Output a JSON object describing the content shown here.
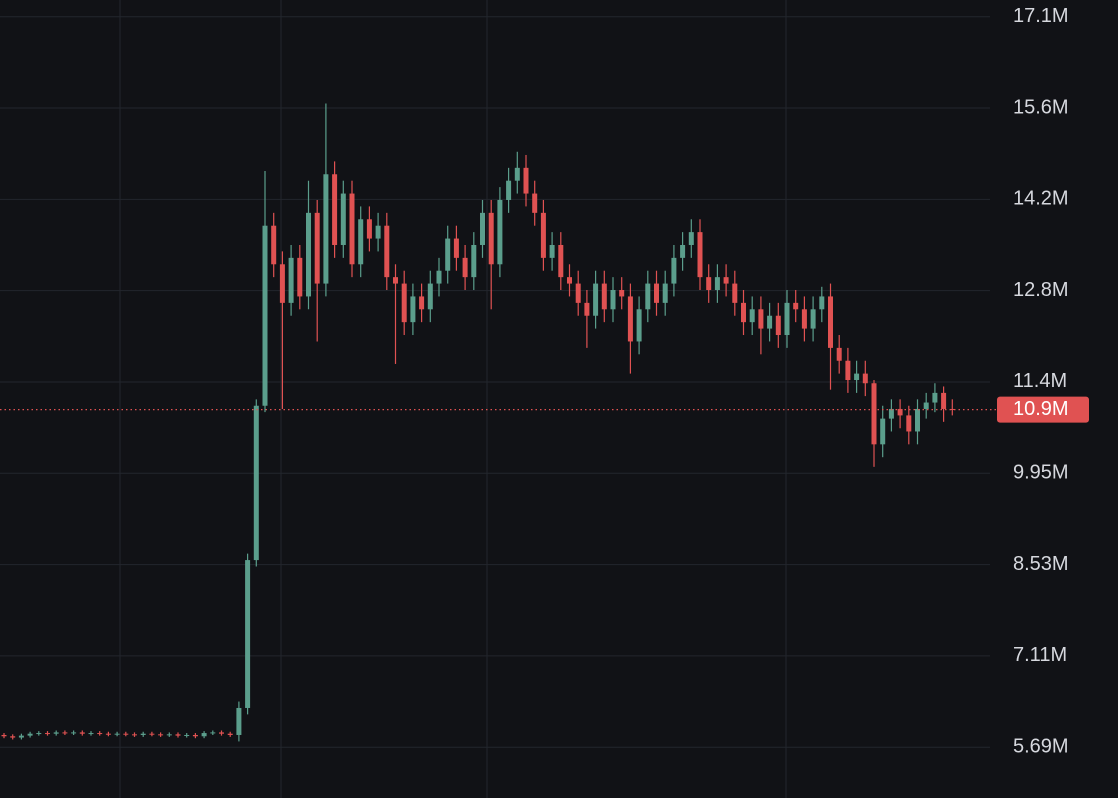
{
  "chart_data": {
    "type": "candlestick",
    "up_color": "#5b9e8c",
    "down_color": "#e05252",
    "grid": true,
    "ylim": [
      4.9,
      17.31
    ],
    "yticks": [
      {
        "value": 17.05,
        "label": "17.1M"
      },
      {
        "value": 15.63,
        "label": "15.6M"
      },
      {
        "value": 14.21,
        "label": "14.2M"
      },
      {
        "value": 12.79,
        "label": "12.8M"
      },
      {
        "value": 11.37,
        "label": "11.4M"
      },
      {
        "value": 9.95,
        "label": "9.95M"
      },
      {
        "value": 8.53,
        "label": "8.53M"
      },
      {
        "value": 7.11,
        "label": "7.11M"
      },
      {
        "value": 5.69,
        "label": "5.69M"
      }
    ],
    "last_price": {
      "value": 10.94,
      "label": "10.9M"
    },
    "open": [
      5.88,
      5.86,
      5.84,
      5.87,
      5.9,
      5.91,
      5.9,
      5.92,
      5.91,
      5.92,
      5.9,
      5.91,
      5.9,
      5.89,
      5.9,
      5.89,
      5.88,
      5.9,
      5.89,
      5.88,
      5.89,
      5.87,
      5.88,
      5.86,
      5.91,
      5.92,
      5.9,
      5.88,
      6.3,
      8.6,
      11.0,
      13.8,
      13.2,
      12.6,
      13.3,
      12.7,
      14.0,
      12.9,
      14.6,
      13.5,
      14.3,
      13.2,
      13.9,
      13.6,
      13.8,
      13.0,
      12.9,
      12.3,
      12.7,
      12.5,
      12.9,
      13.1,
      13.6,
      13.3,
      13.0,
      13.5,
      14.0,
      13.2,
      14.2,
      14.5,
      14.7,
      14.3,
      14.0,
      13.3,
      13.5,
      13.0,
      12.9,
      12.6,
      12.4,
      12.9,
      12.5,
      12.8,
      12.7,
      12.0,
      12.5,
      12.9,
      12.6,
      12.9,
      13.3,
      13.5,
      13.7,
      13.0,
      12.8,
      13.0,
      12.9,
      12.6,
      12.3,
      12.5,
      12.2,
      12.4,
      12.1,
      12.6,
      12.5,
      12.2,
      12.5,
      12.7,
      11.9,
      11.7,
      11.4,
      11.5,
      11.35,
      10.4,
      10.8,
      10.95,
      10.85,
      10.6,
      10.95,
      11.05,
      11.2,
      10.95
    ],
    "high": [
      5.91,
      5.89,
      5.9,
      5.93,
      5.94,
      5.94,
      5.95,
      5.95,
      5.95,
      5.95,
      5.94,
      5.94,
      5.93,
      5.93,
      5.93,
      5.92,
      5.93,
      5.93,
      5.92,
      5.92,
      5.92,
      5.91,
      5.91,
      5.94,
      5.95,
      5.95,
      5.93,
      6.4,
      8.7,
      11.1,
      14.65,
      14.0,
      13.4,
      13.5,
      13.5,
      14.5,
      14.2,
      15.7,
      14.8,
      14.5,
      14.5,
      14.1,
      14.1,
      14.0,
      14.0,
      13.2,
      13.1,
      12.9,
      12.9,
      13.1,
      13.3,
      13.8,
      13.8,
      13.5,
      13.7,
      14.2,
      14.2,
      14.4,
      14.7,
      14.95,
      14.9,
      14.5,
      14.2,
      13.7,
      13.7,
      13.2,
      13.1,
      12.8,
      13.1,
      13.1,
      13.0,
      13.0,
      12.9,
      12.7,
      13.1,
      13.1,
      13.1,
      13.5,
      13.7,
      13.9,
      13.9,
      13.2,
      13.2,
      13.2,
      13.1,
      12.8,
      12.7,
      12.7,
      12.6,
      12.6,
      12.8,
      12.8,
      12.7,
      12.7,
      12.85,
      12.9,
      12.1,
      11.9,
      11.7,
      11.7,
      11.4,
      11.0,
      11.1,
      11.1,
      11.0,
      11.1,
      11.2,
      11.35,
      11.3,
      11.1
    ],
    "low": [
      5.83,
      5.81,
      5.81,
      5.84,
      5.87,
      5.87,
      5.87,
      5.88,
      5.88,
      5.87,
      5.87,
      5.87,
      5.86,
      5.86,
      5.86,
      5.85,
      5.85,
      5.86,
      5.85,
      5.85,
      5.84,
      5.84,
      5.83,
      5.83,
      5.88,
      5.87,
      5.85,
      5.78,
      6.2,
      8.5,
      10.9,
      13.0,
      10.95,
      12.4,
      12.5,
      12.5,
      12.0,
      12.7,
      13.3,
      13.3,
      13.0,
      13.0,
      13.4,
      13.4,
      12.8,
      11.65,
      12.1,
      12.1,
      12.3,
      12.3,
      12.7,
      12.9,
      13.1,
      12.8,
      12.8,
      13.3,
      12.5,
      13.0,
      14.0,
      14.3,
      14.1,
      13.8,
      13.1,
      13.1,
      12.8,
      12.7,
      12.4,
      11.9,
      12.2,
      12.3,
      12.3,
      12.5,
      11.5,
      11.8,
      12.3,
      12.4,
      12.4,
      12.7,
      13.1,
      13.3,
      12.8,
      12.6,
      12.6,
      12.7,
      12.4,
      12.1,
      12.1,
      11.8,
      12.0,
      11.9,
      11.9,
      12.3,
      12.0,
      12.0,
      12.3,
      11.25,
      11.5,
      11.2,
      11.2,
      11.15,
      10.05,
      10.2,
      10.6,
      10.65,
      10.4,
      10.4,
      10.8,
      10.9,
      10.75,
      10.85
    ],
    "close": [
      5.86,
      5.84,
      5.87,
      5.9,
      5.91,
      5.9,
      5.92,
      5.91,
      5.92,
      5.9,
      5.91,
      5.9,
      5.89,
      5.9,
      5.89,
      5.88,
      5.9,
      5.89,
      5.88,
      5.89,
      5.87,
      5.88,
      5.86,
      5.91,
      5.92,
      5.9,
      5.88,
      6.3,
      8.6,
      11.0,
      13.8,
      13.2,
      12.6,
      13.3,
      12.7,
      14.0,
      12.9,
      14.6,
      13.5,
      14.3,
      13.2,
      13.9,
      13.6,
      13.8,
      13.0,
      12.9,
      12.3,
      12.7,
      12.5,
      12.9,
      13.1,
      13.6,
      13.3,
      13.0,
      13.5,
      14.0,
      13.2,
      14.2,
      14.5,
      14.7,
      14.3,
      14.0,
      13.3,
      13.5,
      13.0,
      12.9,
      12.6,
      12.4,
      12.9,
      12.5,
      12.8,
      12.7,
      12.0,
      12.5,
      12.9,
      12.6,
      12.9,
      13.3,
      13.5,
      13.7,
      13.0,
      12.8,
      13.0,
      12.9,
      12.6,
      12.3,
      12.5,
      12.2,
      12.4,
      12.1,
      12.6,
      12.5,
      12.2,
      12.5,
      12.7,
      11.9,
      11.7,
      11.4,
      11.5,
      11.35,
      10.4,
      10.8,
      10.95,
      10.85,
      10.6,
      10.95,
      11.05,
      11.2,
      10.95,
      10.94
    ]
  }
}
